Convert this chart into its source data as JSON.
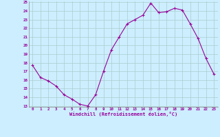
{
  "x": [
    0,
    1,
    2,
    3,
    4,
    5,
    6,
    7,
    8,
    9,
    10,
    11,
    12,
    13,
    14,
    15,
    16,
    17,
    18,
    19,
    20,
    21,
    22,
    23
  ],
  "y": [
    17.7,
    16.3,
    15.9,
    15.3,
    14.3,
    13.8,
    13.2,
    13.0,
    14.3,
    17.0,
    19.5,
    21.0,
    22.5,
    23.0,
    23.5,
    24.9,
    23.8,
    23.9,
    24.3,
    24.1,
    22.5,
    20.8,
    18.5,
    16.7
  ],
  "line_color": "#990099",
  "marker": "+",
  "marker_size": 3,
  "bg_color": "#cceeff",
  "grid_color": "#aacccc",
  "xlabel": "Windchill (Refroidissement éolien,°C)",
  "xlabel_color": "#990099",
  "tick_color": "#990099",
  "ylim": [
    13,
    25
  ],
  "xlim": [
    -0.5,
    23.5
  ],
  "yticks": [
    13,
    14,
    15,
    16,
    17,
    18,
    19,
    20,
    21,
    22,
    23,
    24,
    25
  ],
  "xticks": [
    0,
    1,
    2,
    3,
    4,
    5,
    6,
    7,
    8,
    9,
    10,
    11,
    12,
    13,
    14,
    15,
    16,
    17,
    18,
    19,
    20,
    21,
    22,
    23
  ],
  "xtick_labels": [
    "0",
    "1",
    "2",
    "3",
    "4",
    "5",
    "6",
    "7",
    "8",
    "9",
    "10",
    "11",
    "12",
    "13",
    "14",
    "15",
    "16",
    "17",
    "18",
    "19",
    "20",
    "21",
    "22",
    "23"
  ],
  "ytick_labels": [
    "13",
    "14",
    "15",
    "16",
    "17",
    "18",
    "19",
    "20",
    "21",
    "22",
    "23",
    "24",
    "25"
  ]
}
